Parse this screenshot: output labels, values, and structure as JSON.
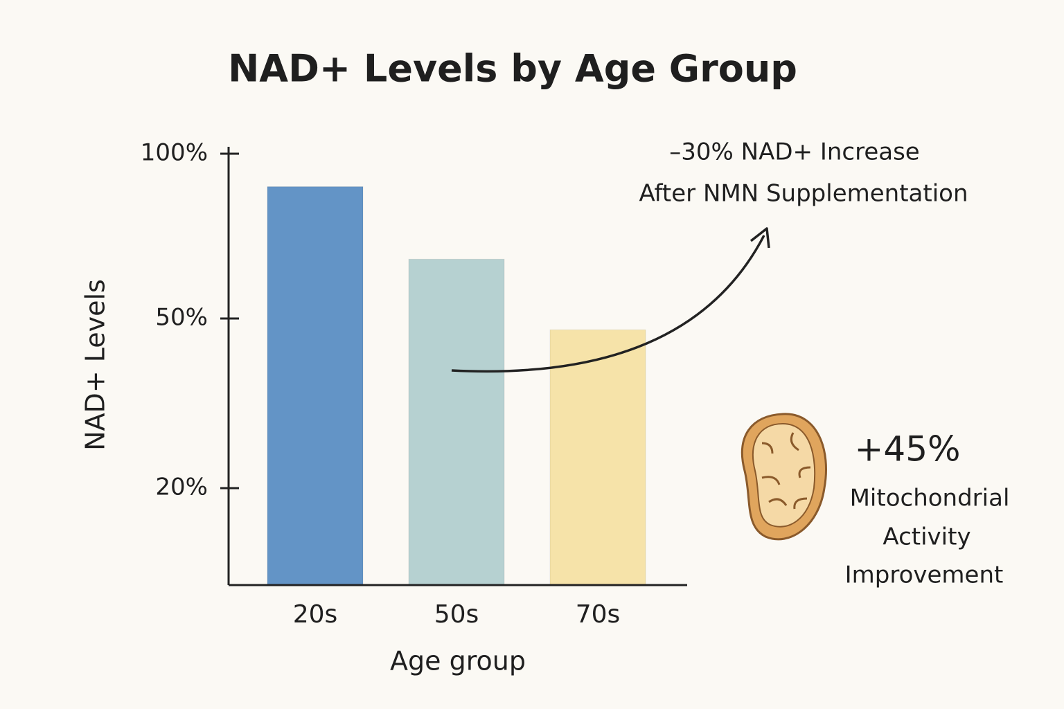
{
  "chart_data": {
    "type": "bar",
    "title": "NAD+ Levels by Age Group",
    "x_label": "Age group",
    "y_label": "NAD+ Levels",
    "categories": [
      "20s",
      "50s",
      "70s"
    ],
    "values": [
      90,
      68,
      48
    ],
    "colors": [
      "#6394c6",
      "#b6d1d1",
      "#f6e3a9"
    ],
    "ylim": [
      0,
      100
    ],
    "yticks": [
      {
        "value": 20,
        "label": "20%"
      },
      {
        "value": 50,
        "label": "50%"
      },
      {
        "value": 100,
        "label": "100%"
      }
    ],
    "annotations": {
      "nad_increase": [
        "–30% NAD+ Increase",
        "After NMN Supplementation"
      ],
      "mito_value": "+45%",
      "mito_text": [
        "Mitochondrial",
        "Activity",
        "Improvement"
      ]
    }
  }
}
